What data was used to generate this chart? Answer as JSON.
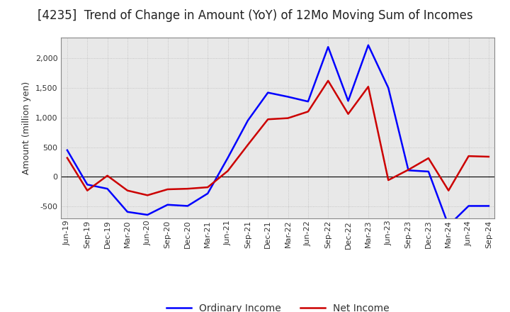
{
  "title": "[4235]  Trend of Change in Amount (YoY) of 12Mo Moving Sum of Incomes",
  "ylabel": "Amount (million yen)",
  "x_labels": [
    "Jun-19",
    "Sep-19",
    "Dec-19",
    "Mar-20",
    "Jun-20",
    "Sep-20",
    "Dec-20",
    "Mar-21",
    "Jun-21",
    "Sep-21",
    "Dec-21",
    "Mar-22",
    "Jun-22",
    "Sep-22",
    "Dec-22",
    "Mar-23",
    "Jun-23",
    "Sep-23",
    "Dec-23",
    "Mar-24",
    "Jun-24",
    "Sep-24"
  ],
  "ordinary_income": [
    450,
    -130,
    -200,
    -590,
    -640,
    -470,
    -490,
    -280,
    320,
    950,
    1420,
    1350,
    1270,
    2190,
    1280,
    2220,
    1500,
    110,
    90,
    -820,
    -490,
    -490
  ],
  "net_income": [
    320,
    -230,
    20,
    -230,
    -310,
    -210,
    -200,
    -175,
    100,
    540,
    970,
    990,
    1100,
    1620,
    1060,
    1520,
    -55,
    120,
    315,
    -230,
    350,
    340
  ],
  "ordinary_color": "#0000ff",
  "net_color": "#cc0000",
  "ylim": [
    -700,
    2350
  ],
  "yticks": [
    -500,
    0,
    500,
    1000,
    1500,
    2000
  ],
  "plot_bg_color": "#e8e8e8",
  "fig_bg_color": "#ffffff",
  "grid_color": "#bbbbbb",
  "title_fontsize": 12,
  "axis_fontsize": 9,
  "tick_fontsize": 8,
  "line_width": 1.8
}
